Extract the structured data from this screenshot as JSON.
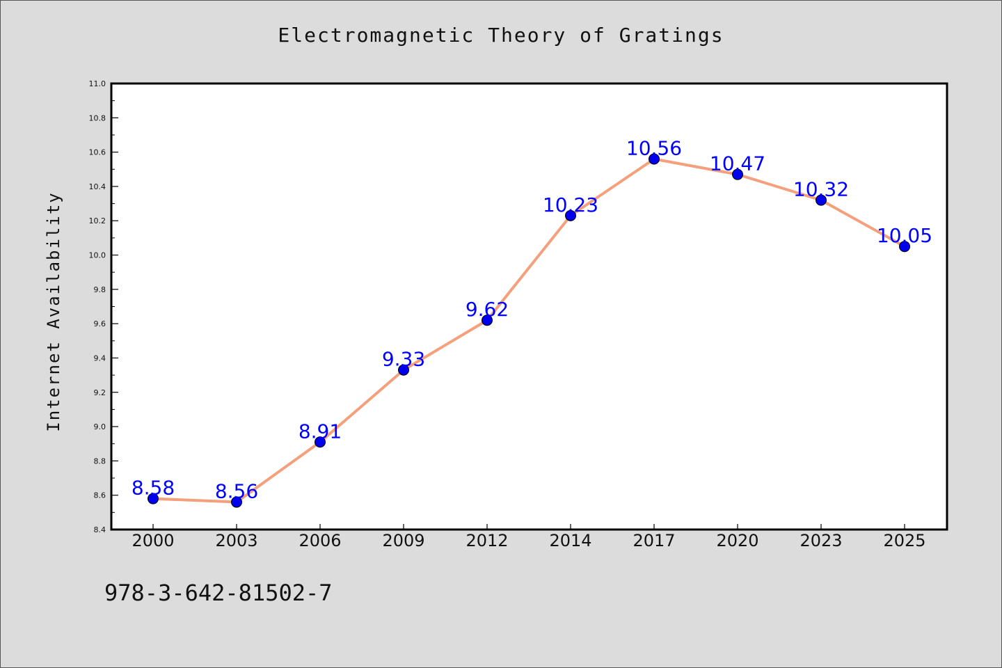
{
  "chart_data": {
    "type": "line",
    "title": "Electromagnetic Theory of Gratings",
    "xlabel": "",
    "ylabel": "Internet Availability",
    "categories": [
      "2000",
      "2003",
      "2006",
      "2009",
      "2012",
      "2014",
      "2017",
      "2020",
      "2023",
      "2025"
    ],
    "values": [
      8.58,
      8.56,
      8.91,
      9.33,
      9.62,
      10.23,
      10.56,
      10.47,
      10.32,
      10.05
    ],
    "data_labels": [
      "8.58",
      "8.56",
      "8.91",
      "9.33",
      "9.62",
      "10.23",
      "10.56",
      "10.47",
      "10.32",
      "10.05"
    ],
    "ylim": [
      8.4,
      11.0
    ],
    "yticks": [
      "8.4",
      "8.6",
      "8.8",
      "9.0",
      "9.2",
      "9.4",
      "9.6",
      "9.8",
      "10.0",
      "10.2",
      "10.4",
      "10.6",
      "10.8",
      "11.0"
    ],
    "grid": false,
    "line_color": "#f4a07c",
    "marker_color": "#0000ee",
    "label_color": "#0000ff"
  },
  "footer": {
    "code": "978-3-642-81502-7"
  }
}
